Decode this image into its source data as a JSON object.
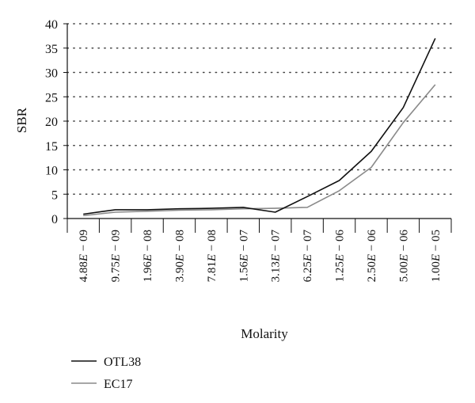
{
  "chart_data": {
    "type": "line",
    "xlabel": "Molarity",
    "ylabel": "SBR",
    "categories": [
      "4.88E − 09",
      "9.75E − 09",
      "1.96E − 08",
      "3.90E − 08",
      "7.81E − 08",
      "1.56E − 07",
      "3.13E − 07",
      "6.25E − 07",
      "1.25E − 06",
      "2.50E − 06",
      "5.00E − 06",
      "1.00E − 05"
    ],
    "category_parts": [
      {
        "m": "4.88",
        "e": "09"
      },
      {
        "m": "9.75",
        "e": "09"
      },
      {
        "m": "1.96",
        "e": "08"
      },
      {
        "m": "3.90",
        "e": "08"
      },
      {
        "m": "7.81",
        "e": "08"
      },
      {
        "m": "1.56",
        "e": "07"
      },
      {
        "m": "3.13",
        "e": "07"
      },
      {
        "m": "6.25",
        "e": "07"
      },
      {
        "m": "1.25",
        "e": "06"
      },
      {
        "m": "2.50",
        "e": "06"
      },
      {
        "m": "5.00",
        "e": "06"
      },
      {
        "m": "1.00",
        "e": "05"
      }
    ],
    "ylim": [
      0,
      40
    ],
    "yticks": [
      "0",
      "5",
      "10",
      "15",
      "20",
      "25",
      "30",
      "35",
      "40"
    ],
    "grid": "dotted horizontal",
    "legend_position": "bottom-left",
    "series": [
      {
        "name": "OTL38",
        "color": "#111111",
        "values": [
          0.9,
          1.8,
          1.8,
          2.0,
          2.1,
          2.3,
          1.3,
          4.5,
          7.8,
          13.8,
          22.8,
          37.0
        ]
      },
      {
        "name": "EC17",
        "color": "#8a8a8a",
        "values": [
          0.6,
          1.3,
          1.5,
          1.7,
          1.8,
          2.0,
          2.1,
          2.3,
          5.7,
          10.5,
          19.7,
          27.5
        ]
      }
    ]
  }
}
